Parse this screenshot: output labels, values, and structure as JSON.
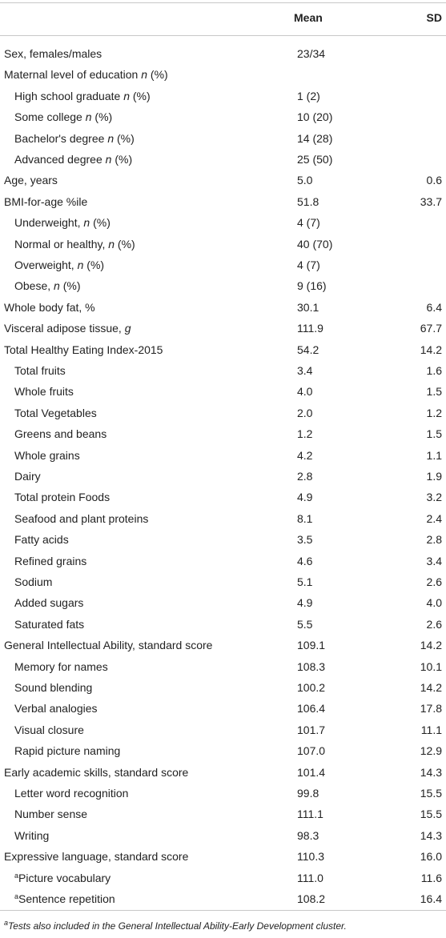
{
  "table": {
    "header": [
      "",
      "Mean",
      "SD"
    ],
    "rows": [
      {
        "label": [
          {
            "text": "Sex, females/males"
          }
        ],
        "mean": "23/34"
      },
      {
        "label": [
          {
            "text": "Maternal level of education "
          },
          {
            "text": "n",
            "italic": true
          },
          {
            "text": " (%)"
          }
        ]
      },
      {
        "level": 1,
        "label": [
          {
            "text": "High school graduate "
          },
          {
            "text": "n",
            "italic": true
          },
          {
            "text": " (%)"
          }
        ],
        "mean": "1 (2)"
      },
      {
        "level": 1,
        "label": [
          {
            "text": "Some college "
          },
          {
            "text": "n",
            "italic": true
          },
          {
            "text": " (%)"
          }
        ],
        "mean": "10 (20)"
      },
      {
        "level": 1,
        "label": [
          {
            "text": "Bachelor's degree "
          },
          {
            "text": "n",
            "italic": true
          },
          {
            "text": " (%)"
          }
        ],
        "mean": "14 (28)"
      },
      {
        "level": 1,
        "label": [
          {
            "text": "Advanced degree "
          },
          {
            "text": "n",
            "italic": true
          },
          {
            "text": " (%)"
          }
        ],
        "mean": "25 (50)"
      },
      {
        "label": [
          {
            "text": "Age, years"
          }
        ],
        "mean": "5.0",
        "sd": "0.6"
      },
      {
        "label": [
          {
            "text": "BMI-for-age %ile"
          }
        ],
        "mean": "51.8",
        "sd": "33.7"
      },
      {
        "level": 1,
        "label": [
          {
            "text": "Underweight, "
          },
          {
            "text": "n",
            "italic": true
          },
          {
            "text": " (%)"
          }
        ],
        "mean": "4 (7)"
      },
      {
        "level": 1,
        "label": [
          {
            "text": "Normal or healthy, "
          },
          {
            "text": "n",
            "italic": true
          },
          {
            "text": " (%)"
          }
        ],
        "mean": "40 (70)"
      },
      {
        "level": 1,
        "label": [
          {
            "text": "Overweight, "
          },
          {
            "text": "n",
            "italic": true
          },
          {
            "text": " (%)"
          }
        ],
        "mean": "4 (7)"
      },
      {
        "level": 1,
        "label": [
          {
            "text": "Obese, "
          },
          {
            "text": "n",
            "italic": true
          },
          {
            "text": " (%)"
          }
        ],
        "mean": "9 (16)"
      },
      {
        "label": [
          {
            "text": "Whole body fat, %"
          }
        ],
        "mean": "30.1",
        "sd": "6.4"
      },
      {
        "label": [
          {
            "text": "Visceral adipose tissue, "
          },
          {
            "text": "g",
            "italic": true
          }
        ],
        "mean": "111.9",
        "sd": "67.7"
      },
      {
        "label": [
          {
            "text": "Total Healthy Eating Index-2015"
          }
        ],
        "mean": "54.2",
        "sd": "14.2"
      },
      {
        "level": 1,
        "label": [
          {
            "text": "Total fruits"
          }
        ],
        "mean": "3.4",
        "sd": "1.6"
      },
      {
        "level": 1,
        "label": [
          {
            "text": "Whole fruits"
          }
        ],
        "mean": "4.0",
        "sd": "1.5"
      },
      {
        "level": 1,
        "label": [
          {
            "text": "Total Vegetables"
          }
        ],
        "mean": "2.0",
        "sd": "1.2"
      },
      {
        "level": 1,
        "label": [
          {
            "text": "Greens and beans"
          }
        ],
        "mean": "1.2",
        "sd": "1.5"
      },
      {
        "level": 1,
        "label": [
          {
            "text": "Whole grains"
          }
        ],
        "mean": "4.2",
        "sd": "1.1"
      },
      {
        "level": 1,
        "label": [
          {
            "text": "Dairy"
          }
        ],
        "mean": "2.8",
        "sd": "1.9"
      },
      {
        "level": 1,
        "label": [
          {
            "text": "Total protein Foods"
          }
        ],
        "mean": "4.9",
        "sd": "3.2"
      },
      {
        "level": 1,
        "label": [
          {
            "text": "Seafood and plant proteins"
          }
        ],
        "mean": "8.1",
        "sd": "2.4"
      },
      {
        "level": 1,
        "label": [
          {
            "text": "Fatty acids"
          }
        ],
        "mean": "3.5",
        "sd": "2.8"
      },
      {
        "level": 1,
        "label": [
          {
            "text": "Refined grains"
          }
        ],
        "mean": "4.6",
        "sd": "3.4"
      },
      {
        "level": 1,
        "label": [
          {
            "text": "Sodium"
          }
        ],
        "mean": "5.1",
        "sd": "2.6"
      },
      {
        "level": 1,
        "label": [
          {
            "text": "Added sugars"
          }
        ],
        "mean": "4.9",
        "sd": "4.0"
      },
      {
        "level": 1,
        "label": [
          {
            "text": "Saturated fats"
          }
        ],
        "mean": "5.5",
        "sd": "2.6"
      },
      {
        "label": [
          {
            "text": "General Intellectual Ability, standard score"
          }
        ],
        "mean": "109.1",
        "sd": "14.2"
      },
      {
        "level": 1,
        "label": [
          {
            "text": "Memory for names"
          }
        ],
        "mean": "108.3",
        "sd": "10.1"
      },
      {
        "level": 1,
        "label": [
          {
            "text": "Sound blending"
          }
        ],
        "mean": "100.2",
        "sd": "14.2"
      },
      {
        "level": 1,
        "label": [
          {
            "text": "Verbal analogies"
          }
        ],
        "mean": "106.4",
        "sd": "17.8"
      },
      {
        "level": 1,
        "label": [
          {
            "text": "Visual closure"
          }
        ],
        "mean": "101.7",
        "sd": "11.1"
      },
      {
        "level": 1,
        "label": [
          {
            "text": "Rapid picture naming"
          }
        ],
        "mean": "107.0",
        "sd": "12.9"
      },
      {
        "label": [
          {
            "text": "Early academic skills, standard score"
          }
        ],
        "mean": "101.4",
        "sd": "14.3"
      },
      {
        "level": 1,
        "label": [
          {
            "text": "Letter word recognition"
          }
        ],
        "mean": "99.8",
        "sd": "15.5"
      },
      {
        "level": 1,
        "label": [
          {
            "text": "Number sense"
          }
        ],
        "mean": "111.1",
        "sd": "15.5"
      },
      {
        "level": 1,
        "label": [
          {
            "text": "Writing"
          }
        ],
        "mean": "98.3",
        "sd": "14.3"
      },
      {
        "label": [
          {
            "text": "Expressive language, standard score"
          }
        ],
        "mean": "110.3",
        "sd": "16.0"
      },
      {
        "level": 1,
        "label": [
          {
            "text": "a",
            "sup": true
          },
          {
            "text": "Picture vocabulary"
          }
        ],
        "mean": "111.0",
        "sd": "11.6"
      },
      {
        "level": 1,
        "label": [
          {
            "text": "a",
            "sup": true
          },
          {
            "text": "Sentence repetition"
          }
        ],
        "mean": "108.2",
        "sd": "16.4"
      }
    ],
    "footnote": [
      {
        "text": "a",
        "sup": true
      },
      {
        "text": "Tests also included in the General Intellectual Ability-Early Development cluster."
      }
    ]
  }
}
